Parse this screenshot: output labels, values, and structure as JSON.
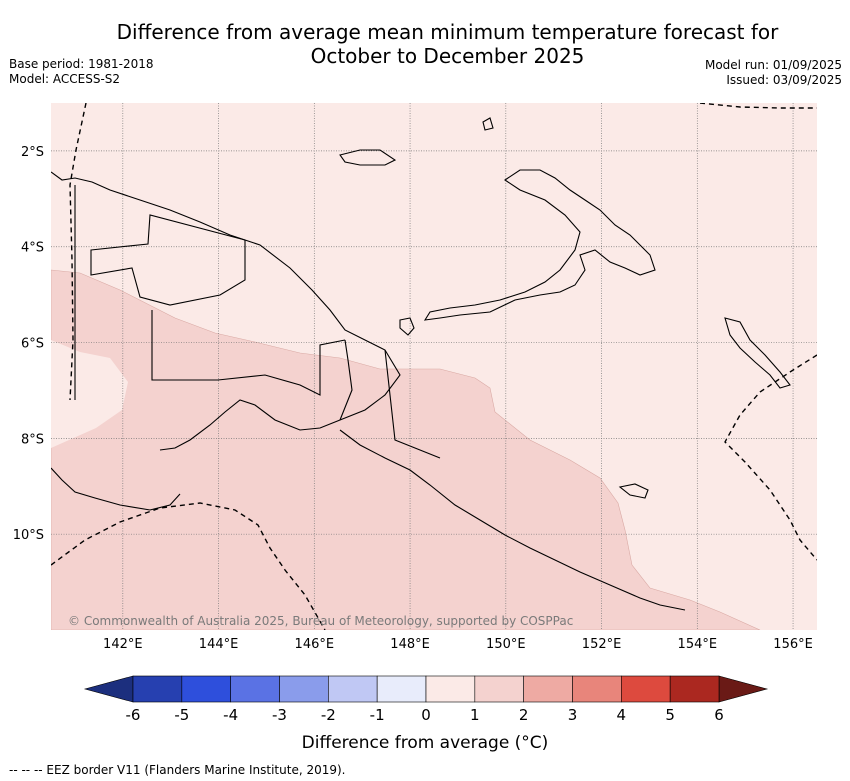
{
  "title_line1": "Difference from average mean minimum temperature forecast for",
  "title_line2": "October to December 2025",
  "base_period": "Base period: 1981-2018",
  "model": "Model: ACCESS-S2",
  "model_run": "Model run: 01/09/2025",
  "issued": "Issued: 03/09/2025",
  "copyright": "© Commonwealth of Australia 2025, Bureau of Meteorology, supported by COSPPac",
  "map": {
    "lon_range": [
      140.5,
      156.5
    ],
    "lat_range": [
      -12.0,
      -1.0
    ],
    "lon_ticks": [
      142,
      144,
      146,
      148,
      150,
      152,
      154,
      156
    ],
    "lon_tick_labels": [
      "142°E",
      "144°E",
      "146°E",
      "148°E",
      "150°E",
      "152°E",
      "154°E",
      "156°E"
    ],
    "lat_ticks": [
      -2,
      -4,
      -6,
      -8,
      -10
    ],
    "lat_tick_labels": [
      "2°S",
      "4°S",
      "6°S",
      "8°S",
      "10°S"
    ],
    "gridlines": true,
    "category_colors": {
      "0_to_1": "#fbeae7",
      "1_to_2": "#f4d2cf"
    }
  },
  "colorbar": {
    "title": "Difference from average (°C)",
    "tick_labels": [
      "-6",
      "-5",
      "-4",
      "-3",
      "-2",
      "-1",
      "0",
      "1",
      "2",
      "3",
      "4",
      "5",
      "6"
    ],
    "under_color": "#1c2f7e",
    "over_color": "#6a1a16",
    "colors": [
      "#2640b0",
      "#2e4fdc",
      "#5a72e4",
      "#8a9ceb",
      "#c0c8f4",
      "#e8ecfb",
      "#fbeae7",
      "#f4d2cf",
      "#eeaaa3",
      "#e8857b",
      "#dd4a3e",
      "#ab2820"
    ]
  },
  "footnote": "--  --  -- EEZ border V11 (Flanders Marine Institute, 2019)."
}
